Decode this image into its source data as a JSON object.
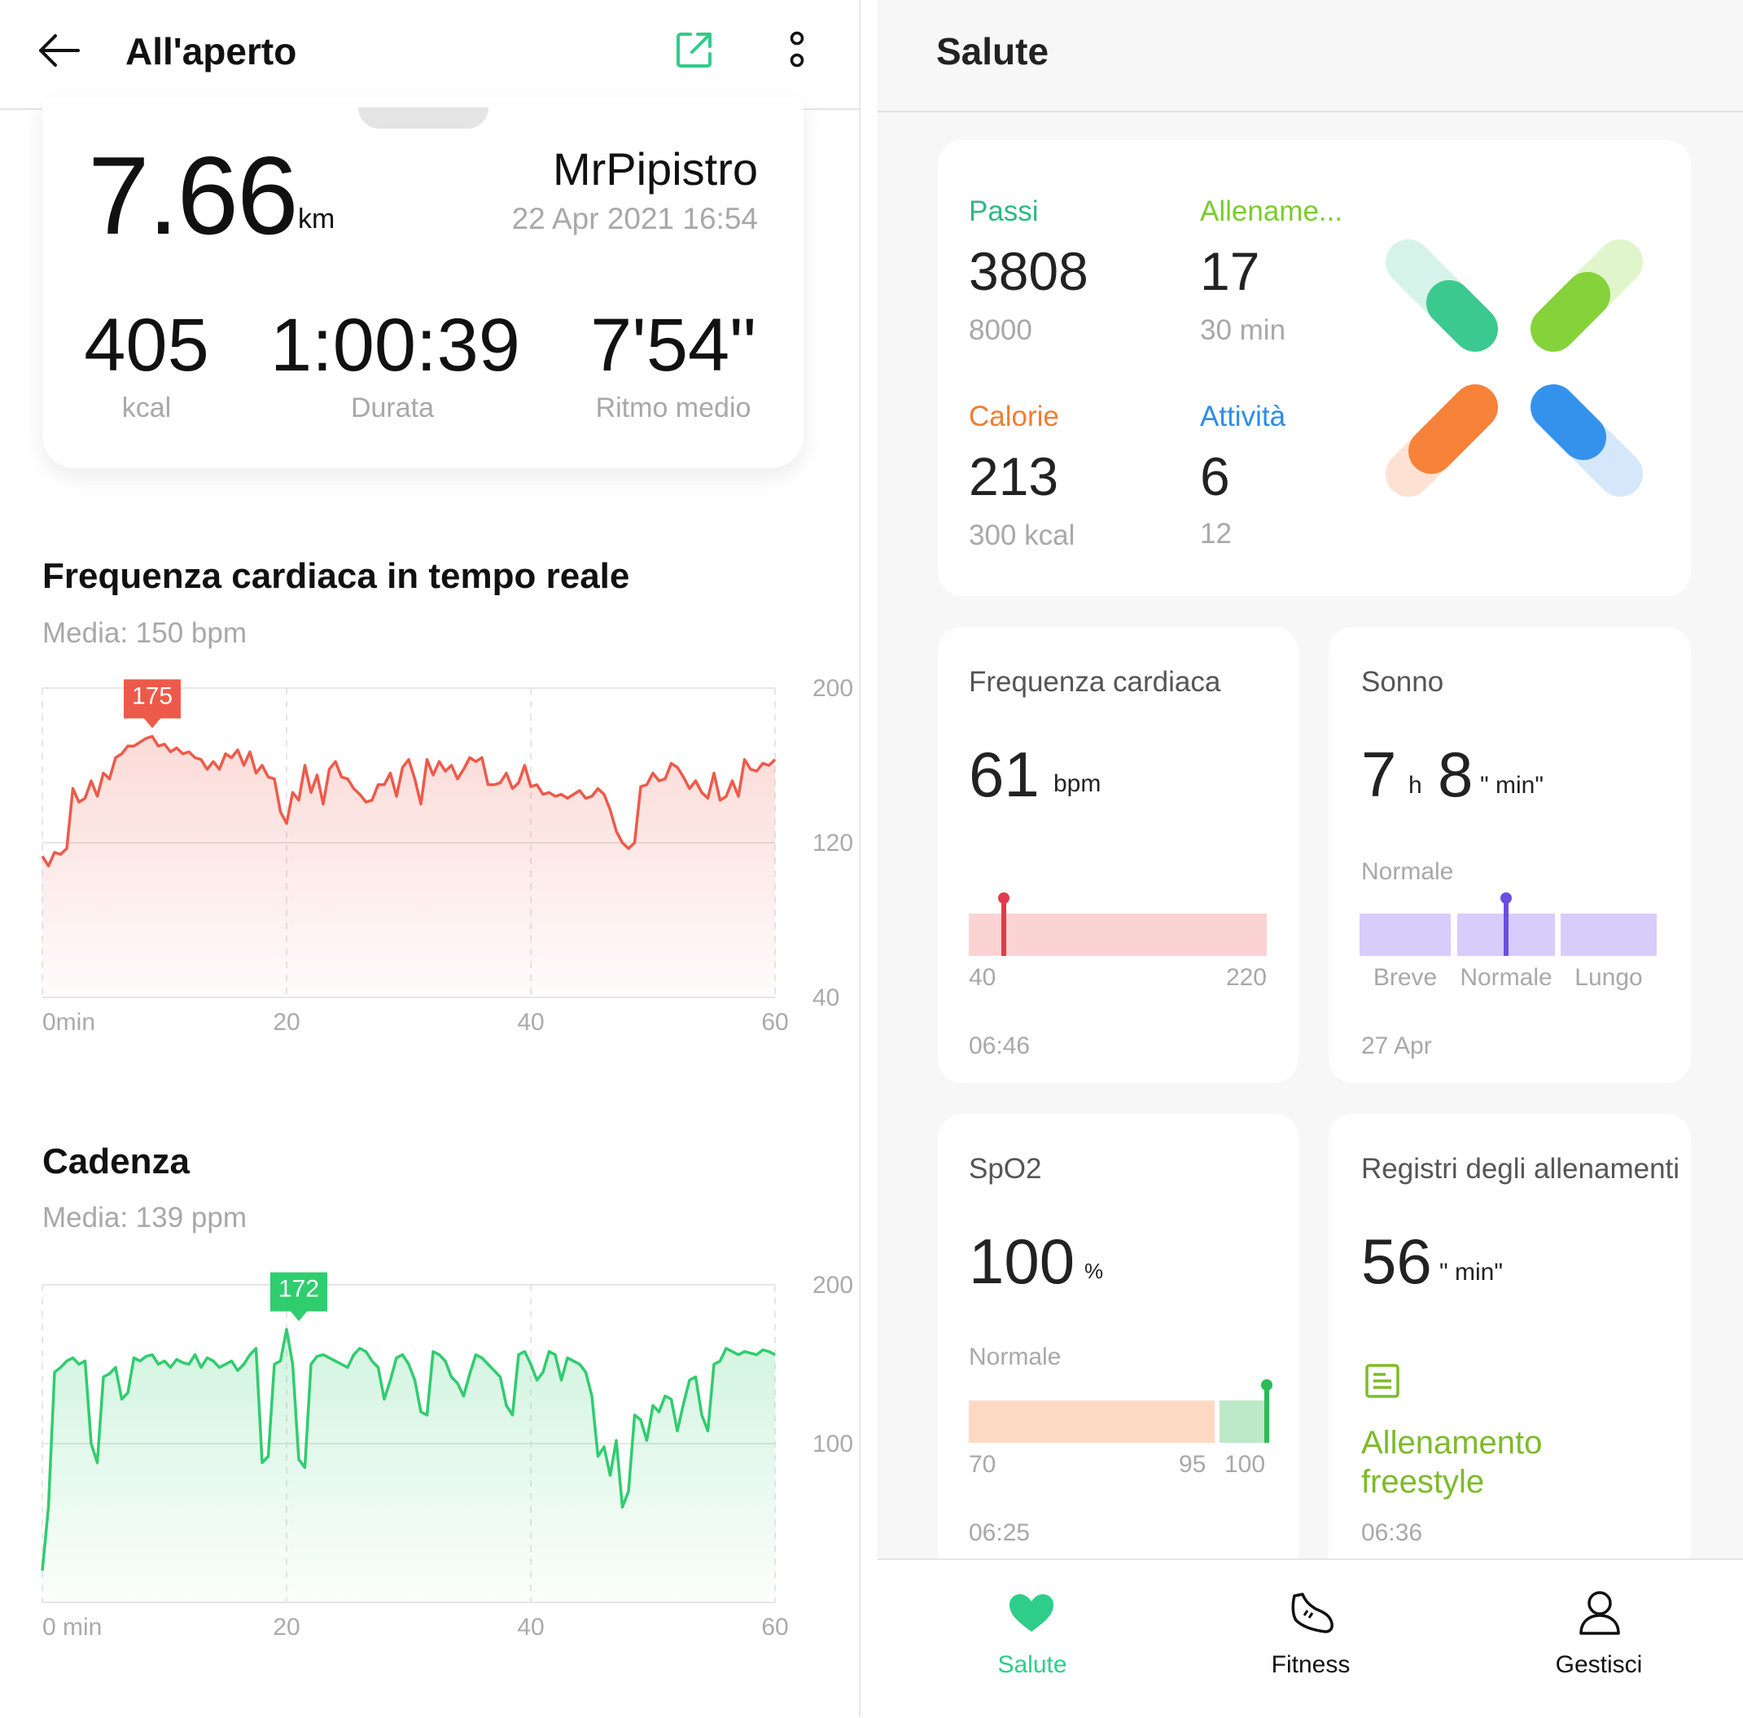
{
  "left": {
    "header": {
      "title": "All'aperto"
    },
    "summary": {
      "distance": "7.66",
      "distance_unit": "km",
      "user": "MrPipistro",
      "datetime": "22 Apr 2021 16:54",
      "stats": [
        {
          "value": "405",
          "label": "kcal"
        },
        {
          "value": "1:00:39",
          "label": "Durata"
        },
        {
          "value": "7'54\"",
          "label": "Ritmo medio"
        }
      ]
    },
    "heart_section": {
      "title": "Frequenza cardiaca in tempo reale",
      "subtitle": "Media: 150 bpm"
    },
    "cadence_section": {
      "title": "Cadenza",
      "subtitle": "Media: 139 ppm"
    }
  },
  "chart_data": [
    {
      "type": "area",
      "title": "Frequenza cardiaca in tempo reale",
      "ylim": [
        40,
        200
      ],
      "yticks": [
        "200",
        "120",
        "40"
      ],
      "xticks": [
        "0min",
        "20",
        "40",
        "60"
      ],
      "xlim": [
        0,
        60
      ],
      "color": "#ee5a4a",
      "peak_label": "175",
      "peak": [
        9,
        175
      ],
      "series": [
        {
          "x": [
            0,
            0.5,
            1,
            1.5,
            2,
            2.5,
            3,
            3.5,
            4,
            4.5,
            5,
            5.5,
            6,
            6.5,
            7,
            7.5,
            8,
            8.5,
            9,
            9.5,
            10,
            10.5,
            11,
            11.5,
            12,
            12.5,
            13,
            13.5,
            14,
            14.5,
            15,
            15.5,
            16,
            16.5,
            17,
            17.5,
            18,
            18.5,
            19,
            19.5,
            20,
            20.5,
            21,
            21.5,
            22,
            22.5,
            23,
            23.5,
            24,
            24.5,
            25,
            25.5,
            26,
            26.5,
            27,
            27.5,
            28,
            28.5,
            29,
            29.5,
            30,
            30.5,
            31,
            31.5,
            32,
            32.5,
            33,
            33.5,
            34,
            34.5,
            35,
            35.5,
            36,
            36.5,
            37,
            37.5,
            38,
            38.5,
            39,
            39.5,
            40,
            40.5,
            41,
            41.5,
            42,
            42.5,
            43,
            43.5,
            44,
            44.5,
            45,
            45.5,
            46,
            46.5,
            47,
            47.5,
            48,
            48.5,
            49,
            49.5,
            50,
            50.5,
            51,
            51.5,
            52,
            52.5,
            53,
            53.5,
            54,
            54.5,
            55,
            55.5,
            56,
            56.5,
            57,
            57.5,
            58,
            58.5,
            59,
            59.5,
            60
          ],
          "values": [
            113,
            108,
            115,
            114,
            117,
            148,
            141,
            143,
            152,
            144,
            156,
            153,
            164,
            166,
            170,
            170,
            172,
            174,
            175,
            170,
            171,
            167,
            169,
            166,
            167,
            164,
            163,
            158,
            162,
            158,
            166,
            164,
            168,
            160,
            167,
            156,
            160,
            154,
            153,
            136,
            130,
            146,
            142,
            160,
            146,
            155,
            140,
            158,
            162,
            154,
            153,
            148,
            145,
            141,
            142,
            150,
            150,
            156,
            144,
            159,
            163,
            153,
            140,
            163,
            155,
            162,
            157,
            160,
            153,
            158,
            164,
            162,
            164,
            150,
            150,
            151,
            156,
            148,
            151,
            160,
            149,
            150,
            145,
            146,
            144,
            145,
            143,
            145,
            147,
            143,
            144,
            148,
            145,
            137,
            126,
            120,
            117,
            120,
            149,
            150,
            156,
            152,
            153,
            161,
            159,
            154,
            148,
            152,
            146,
            143,
            156,
            142,
            144,
            152,
            144,
            163,
            158,
            157,
            161,
            160,
            163
          ]
        }
      ]
    },
    {
      "type": "area",
      "title": "Cadenza",
      "ylim": [
        0,
        200
      ],
      "yticks": [
        "200",
        "100"
      ],
      "xticks": [
        "0 min",
        "20",
        "40",
        "60"
      ],
      "xlim": [
        0,
        60
      ],
      "color": "#2fcd6e",
      "peak_label": "172",
      "peak": [
        21,
        172
      ],
      "series": [
        {
          "x": [
            0,
            0.5,
            1,
            1.5,
            2,
            2.5,
            3,
            3.5,
            4,
            4.5,
            5,
            5.5,
            6,
            6.5,
            7,
            7.5,
            8,
            8.5,
            9,
            9.5,
            10,
            10.5,
            11,
            11.5,
            12,
            12.5,
            13,
            13.5,
            14,
            14.5,
            15,
            15.5,
            16,
            16.5,
            17,
            17.5,
            18,
            18.5,
            19,
            19.5,
            20,
            20.5,
            21,
            21.5,
            22,
            22.5,
            23,
            23.5,
            24,
            24.5,
            25,
            25.5,
            26,
            26.5,
            27,
            27.5,
            28,
            28.5,
            29,
            29.5,
            30,
            30.5,
            31,
            31.5,
            32,
            32.5,
            33,
            33.5,
            34,
            34.5,
            35,
            35.5,
            36,
            36.5,
            37,
            37.5,
            38,
            38.5,
            39,
            39.5,
            40,
            40.5,
            41,
            41.5,
            42,
            42.5,
            43,
            43.5,
            44,
            44.5,
            45,
            45.5,
            46,
            46.5,
            47,
            47.5,
            48,
            48.5,
            49,
            49.5,
            50,
            50.5,
            51,
            51.5,
            52,
            52.5,
            53,
            53.5,
            54,
            54.5,
            55,
            55.5,
            56,
            56.5,
            57,
            57.5,
            58,
            58.5,
            59,
            59.5,
            60
          ],
          "values": [
            20,
            60,
            145,
            148,
            152,
            154,
            150,
            152,
            100,
            88,
            142,
            144,
            148,
            128,
            132,
            154,
            152,
            155,
            156,
            150,
            152,
            148,
            153,
            151,
            150,
            156,
            148,
            154,
            152,
            148,
            150,
            152,
            146,
            150,
            156,
            160,
            88,
            92,
            150,
            152,
            172,
            150,
            90,
            85,
            150,
            155,
            156,
            154,
            152,
            150,
            148,
            156,
            160,
            158,
            152,
            148,
            128,
            140,
            154,
            156,
            150,
            140,
            120,
            118,
            158,
            156,
            152,
            142,
            138,
            130,
            144,
            156,
            154,
            150,
            146,
            142,
            124,
            118,
            156,
            158,
            150,
            140,
            145,
            158,
            156,
            140,
            154,
            152,
            150,
            145,
            130,
            92,
            98,
            80,
            102,
            60,
            70,
            118,
            115,
            102,
            124,
            120,
            130,
            128,
            108,
            125,
            140,
            142,
            118,
            108,
            150,
            152,
            160,
            158,
            156,
            158,
            157,
            156,
            159,
            158,
            156
          ]
        }
      ]
    }
  ],
  "right": {
    "header": {
      "title": "Salute"
    },
    "rings": {
      "items": [
        {
          "label": "Passi",
          "value": "3808",
          "goal": "8000",
          "color": "#2fb882"
        },
        {
          "label": "Allename...",
          "value": "17",
          "goal": "30 min",
          "color": "#7acc2e"
        },
        {
          "label": "Calorie",
          "value": "213",
          "goal": "300 kcal",
          "color": "#f07d32"
        },
        {
          "label": "Attività",
          "value": "6",
          "goal": "12",
          "color": "#2b8ee8"
        }
      ]
    },
    "heart_card": {
      "title": "Frequenza cardiaca",
      "value": "61",
      "unit": "bpm",
      "min": "40",
      "max": "220",
      "time": "06:46",
      "level": 61
    },
    "sleep_card": {
      "title": "Sonno",
      "hours": "7",
      "h_unit": "h",
      "minutes": "8",
      "min_unit": "\" min\"",
      "status": "Normale",
      "labels": [
        "Breve",
        "Normale",
        "Lungo"
      ],
      "date": "27 Apr"
    },
    "spo2_card": {
      "title": "SpO2",
      "value": "100",
      "unit": "%",
      "status": "Normale",
      "min": "70",
      "mid": "95",
      "max": "100",
      "time": "06:25",
      "level": 100
    },
    "workout_card": {
      "title": "Registri degli allenamenti",
      "value": "56",
      "unit": "\" min\"",
      "activity": "Allenamento freestyle",
      "time": "06:36"
    },
    "nav": {
      "items": [
        {
          "label": "Salute",
          "active": true
        },
        {
          "label": "Fitness",
          "active": false
        },
        {
          "label": "Gestisci",
          "active": false
        }
      ]
    },
    "colors": {
      "accent": "#2fcd8a",
      "heart": "#e23a4a",
      "sleep": "#6a4fe0",
      "spo2": "#2cbb55",
      "workout": "#7dbb2a"
    }
  }
}
